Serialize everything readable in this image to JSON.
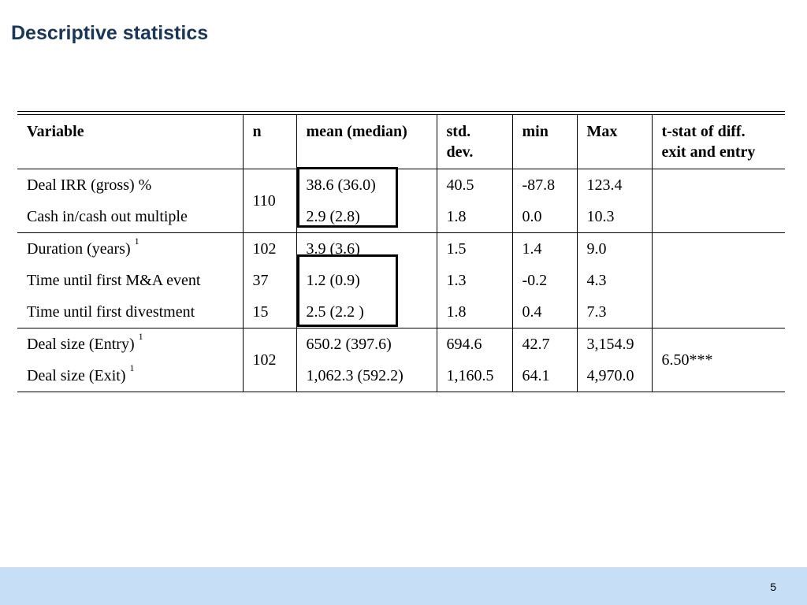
{
  "slide": {
    "title": "Descriptive statistics",
    "page_number": "5"
  },
  "table": {
    "headers": {
      "variable": "Variable",
      "n": "n",
      "mean": "mean (median)",
      "std_line1": "std.",
      "std_line2": "dev.",
      "min": "min",
      "max": "Max",
      "tstat_line1": "t-stat of diff.",
      "tstat_line2": "exit and entry"
    },
    "groups": [
      {
        "n": "110",
        "rows": [
          {
            "variable": "Deal IRR (gross) %",
            "footnote": "",
            "n": "",
            "mean": "38.6 (36.0)",
            "std": "40.5",
            "min": "-87.8",
            "max": "123.4"
          },
          {
            "variable": "Cash in/cash out multiple",
            "footnote": "",
            "n": "",
            "mean": "2.9 (2.8)",
            "std": "1.8",
            "min": "0.0",
            "max": "10.3"
          }
        ]
      },
      {
        "n": "",
        "rows": [
          {
            "variable": "Duration (years)",
            "footnote": "1",
            "n": "102",
            "mean": "3.9 (3.6)",
            "std": "1.5",
            "min": "1.4",
            "max": "9.0"
          },
          {
            "variable": "Time until first M&A event",
            "footnote": "",
            "n": "37",
            "mean": "1.2 (0.9)",
            "std": "1.3",
            "min": "-0.2",
            "max": "4.3"
          },
          {
            "variable": "Time until first divestment",
            "footnote": "",
            "n": "15",
            "mean": "2.5 (2.2 )",
            "std": "1.8",
            "min": "0.4",
            "max": "7.3"
          }
        ]
      },
      {
        "n": "102",
        "tstat": "6.50***",
        "rows": [
          {
            "variable": "Deal size (Entry)",
            "footnote": "1",
            "n": "",
            "mean": "650.2 (397.6)",
            "std": "694.6",
            "min": "42.7",
            "max": "3,154.9"
          },
          {
            "variable": "Deal size (Exit)",
            "footnote": "1",
            "n": "",
            "mean": "1,062.3 (592.2)",
            "std": "1,160.5",
            "min": "64.1",
            "max": "4,970.0"
          }
        ]
      }
    ]
  }
}
